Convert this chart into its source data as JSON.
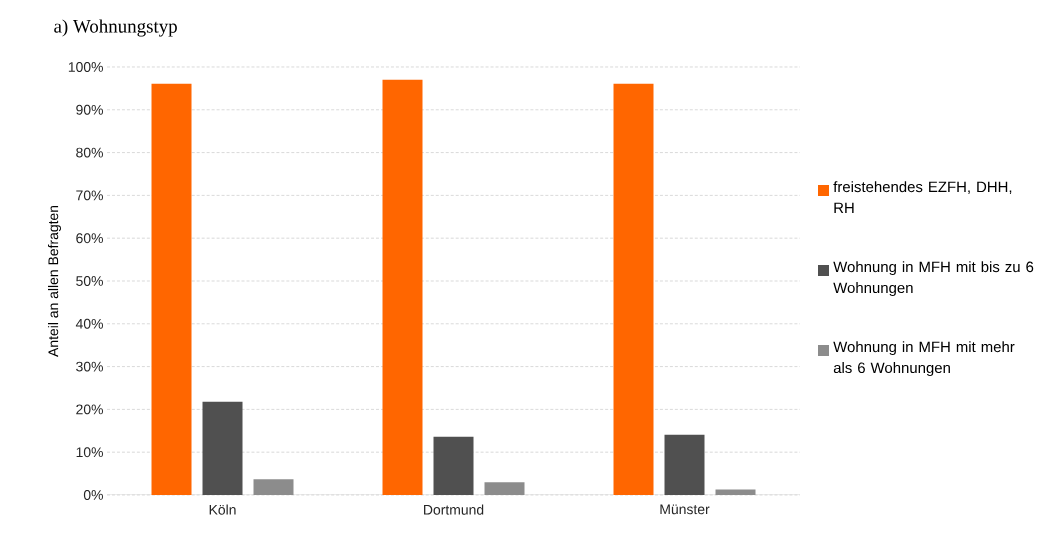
{
  "chart_data": {
    "type": "bar",
    "title": "a)  Wohnungstyp",
    "ylabel": "Anteil an allen Befragten",
    "categories": [
      "Köln",
      "Dortmund",
      "Münster"
    ],
    "series": [
      {
        "name": "freistehendes EZFH, DHH, RH",
        "color": "#ff6600",
        "values": [
          96.1,
          97.0,
          96.1
        ]
      },
      {
        "name": "Wohnung in MFH mit bis zu 6 Wohnungen",
        "color": "#505050",
        "values": [
          21.8,
          13.6,
          14.1
        ]
      },
      {
        "name": "Wohnung in MFH mit mehr als 6 Wohnungen",
        "color": "#8c8c8c",
        "values": [
          3.7,
          3.0,
          1.3
        ]
      }
    ],
    "ylim": [
      0,
      100
    ],
    "yticks": [
      {
        "value": 0,
        "label": "0%"
      },
      {
        "value": 10,
        "label": "10%"
      },
      {
        "value": 20,
        "label": "20%"
      },
      {
        "value": 30,
        "label": "30%"
      },
      {
        "value": 40,
        "label": "40%"
      },
      {
        "value": 50,
        "label": "50%"
      },
      {
        "value": 60,
        "label": "60%"
      },
      {
        "value": 70,
        "label": "70%"
      },
      {
        "value": 80,
        "label": "80%"
      },
      {
        "value": 90,
        "label": "90%"
      },
      {
        "value": 100,
        "label": "100%"
      }
    ],
    "grid": "y",
    "legend": "right"
  }
}
